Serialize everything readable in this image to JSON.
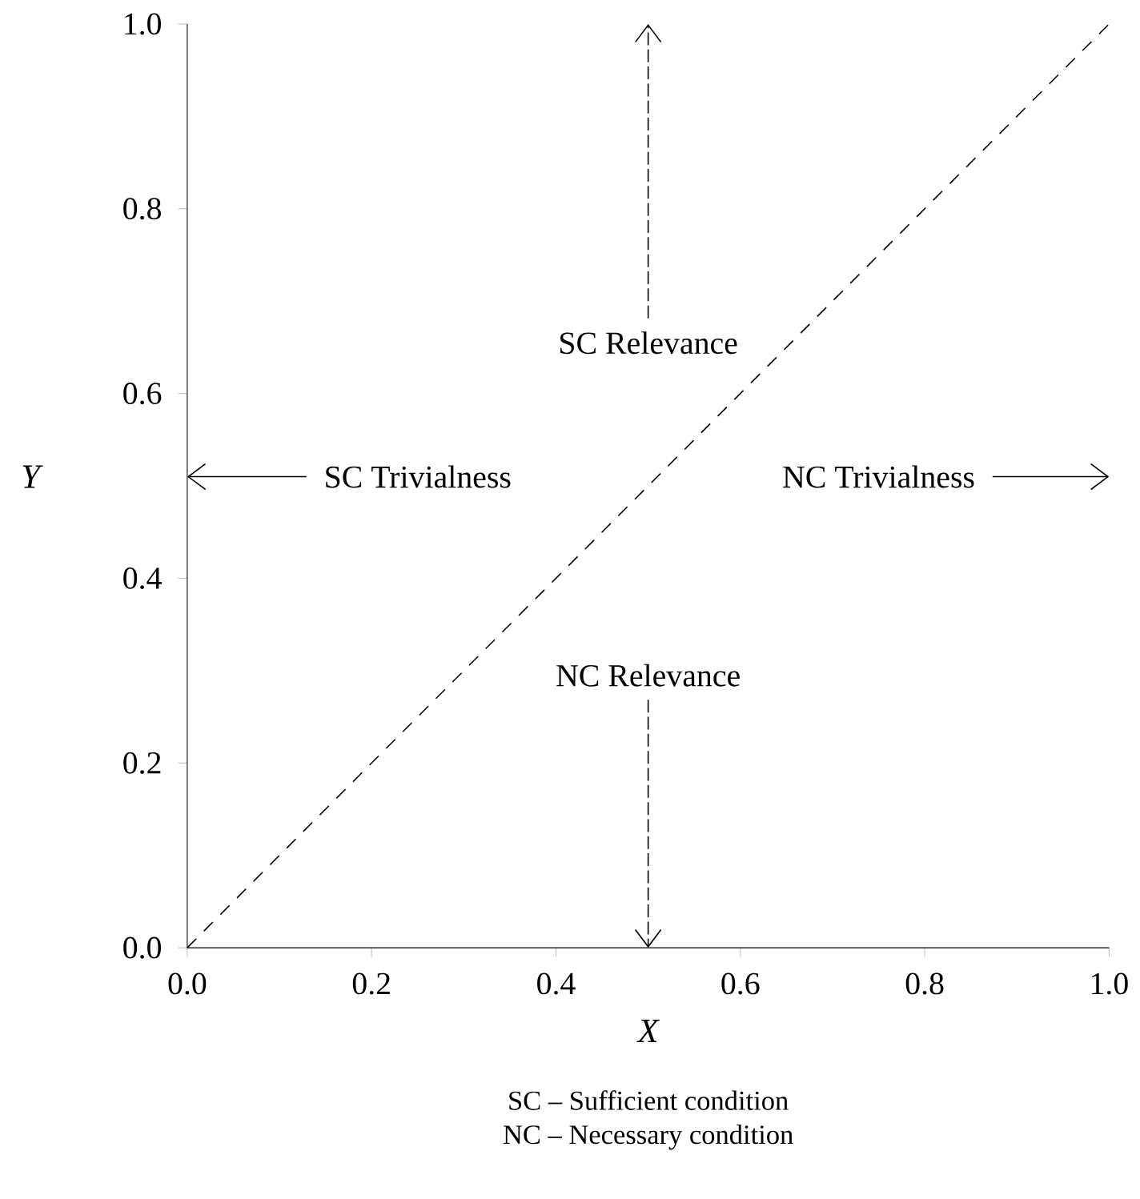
{
  "chart_data": {
    "type": "line",
    "xlabel": "X",
    "ylabel": "Y",
    "x": [
      0,
      1
    ],
    "series": [
      {
        "color": "#000000",
        "values": [
          0,
          1
        ],
        "line_style": "dashed"
      }
    ],
    "xlim": [
      0,
      1
    ],
    "ylim": [
      0,
      1
    ],
    "xticks": [
      {
        "value": 0,
        "label": "0.0"
      },
      {
        "value": 0.2,
        "label": "0.2"
      },
      {
        "value": 0.4,
        "label": "0.4"
      },
      {
        "value": 0.6,
        "label": "0.6"
      },
      {
        "value": 0.8,
        "label": "0.8"
      },
      {
        "value": 1,
        "label": "1.0"
      }
    ],
    "yticks": [
      {
        "value": 0,
        "label": "0.0"
      },
      {
        "value": 0.2,
        "label": "0.2"
      },
      {
        "value": 0.4,
        "label": "0.4"
      },
      {
        "value": 0.6,
        "label": "0.6"
      },
      {
        "value": 0.8,
        "label": "0.8"
      },
      {
        "value": 1,
        "label": "1.0"
      }
    ],
    "annotations": [
      "SC Relevance",
      "SC Trivialness",
      "NC Trivialness",
      "NC Relevance",
      "SC – Sufficient condition",
      "NC – Necessary condition"
    ],
    "grid": false,
    "legend": false,
    "marker": "none"
  }
}
